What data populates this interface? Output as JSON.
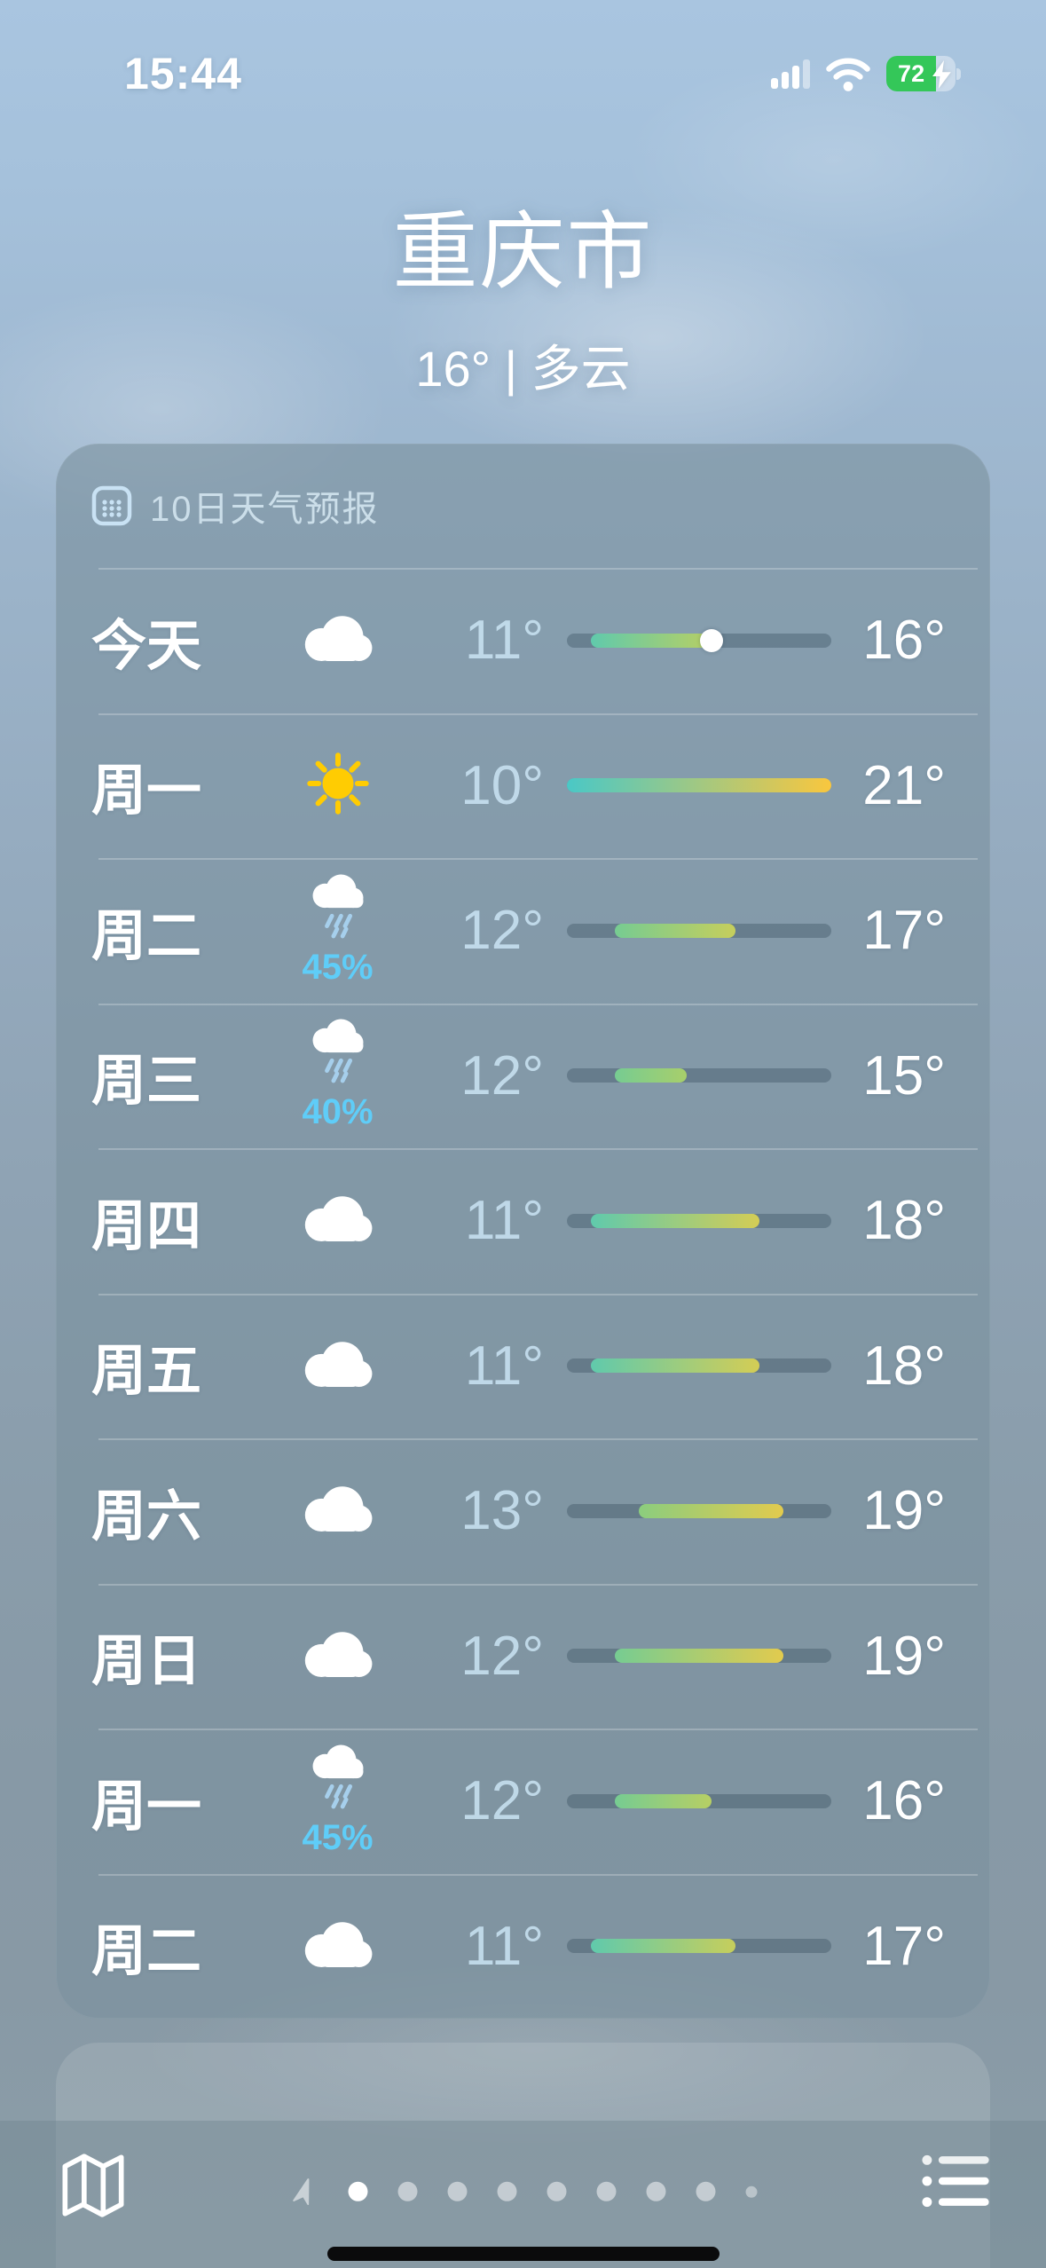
{
  "status_bar": {
    "time": "15:44",
    "battery_percent": "72",
    "signal_bars_filled": 3,
    "signal_bars_total": 4
  },
  "location_header": {
    "city": "重庆市",
    "current_summary": "16° | 多云"
  },
  "forecast_card": {
    "header_title": "10日天气预报",
    "scale_min": 10,
    "scale_max": 21,
    "rows": [
      {
        "day": "今天",
        "condition": "cloudy",
        "precip": "",
        "low": 11,
        "high": 16,
        "low_label": "11°",
        "high_label": "16°",
        "current": 16
      },
      {
        "day": "周一",
        "condition": "sunny",
        "precip": "",
        "low": 10,
        "high": 21,
        "low_label": "10°",
        "high_label": "21°",
        "current": null
      },
      {
        "day": "周二",
        "condition": "rain",
        "precip": "45%",
        "low": 12,
        "high": 17,
        "low_label": "12°",
        "high_label": "17°",
        "current": null
      },
      {
        "day": "周三",
        "condition": "rain",
        "precip": "40%",
        "low": 12,
        "high": 15,
        "low_label": "12°",
        "high_label": "15°",
        "current": null
      },
      {
        "day": "周四",
        "condition": "cloudy",
        "precip": "",
        "low": 11,
        "high": 18,
        "low_label": "11°",
        "high_label": "18°",
        "current": null
      },
      {
        "day": "周五",
        "condition": "cloudy",
        "precip": "",
        "low": 11,
        "high": 18,
        "low_label": "11°",
        "high_label": "18°",
        "current": null
      },
      {
        "day": "周六",
        "condition": "cloudy",
        "precip": "",
        "low": 13,
        "high": 19,
        "low_label": "13°",
        "high_label": "19°",
        "current": null
      },
      {
        "day": "周日",
        "condition": "cloudy",
        "precip": "",
        "low": 12,
        "high": 19,
        "low_label": "12°",
        "high_label": "19°",
        "current": null
      },
      {
        "day": "周一",
        "condition": "rain",
        "precip": "45%",
        "low": 12,
        "high": 16,
        "low_label": "12°",
        "high_label": "16°",
        "current": null
      },
      {
        "day": "周二",
        "condition": "cloudy",
        "precip": "",
        "low": 11,
        "high": 17,
        "low_label": "11°",
        "high_label": "17°",
        "current": null
      }
    ]
  },
  "toolbar": {
    "dots": [
      "active",
      "inactive",
      "inactive",
      "inactive",
      "inactive",
      "inactive",
      "inactive",
      "inactive",
      "small"
    ]
  },
  "colors": {
    "precip_text": "#5FCDF8",
    "sun": "#FFCC02",
    "rain_streak": "#A6CFEC",
    "battery_green": "#34C759",
    "bar_track": "rgba(35,60,75,0.30)",
    "temp_stops": [
      {
        "t": 10,
        "c": "#4AC8C6"
      },
      {
        "t": 12,
        "c": "#76CC92"
      },
      {
        "t": 13,
        "c": "#8BCD7E"
      },
      {
        "t": 15,
        "c": "#A8CF6B"
      },
      {
        "t": 17,
        "c": "#C6CE5C"
      },
      {
        "t": 19,
        "c": "#E2CB4E"
      },
      {
        "t": 21,
        "c": "#F9C73E"
      }
    ]
  }
}
